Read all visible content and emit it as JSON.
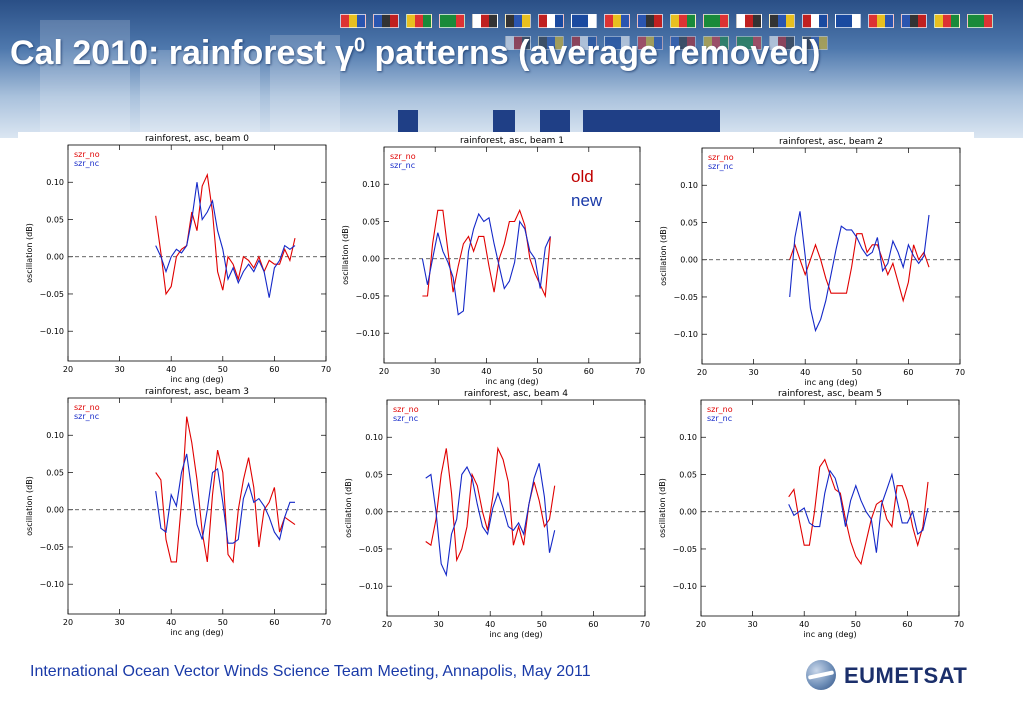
{
  "slide": {
    "title_main": "Cal 2010: rainforest γ",
    "title_sup": "0",
    "title_rest": " patterns (average removed)",
    "footer": "International Ocean Vector Winds Science Team Meeting, Annapolis, May 2011",
    "logo_text": "EUMETSAT",
    "annotation_old": "old",
    "annotation_new": "new",
    "colors": {
      "old": "#e00000",
      "new": "#1428c8",
      "title_bar": "#1f3f86",
      "footer_text": "#1a3aa8"
    }
  },
  "chart_data": [
    {
      "type": "line",
      "title": "rainforest, asc, beam 0",
      "xlabel": "inc ang (deg)",
      "ylabel": "oscillation (dB)",
      "xlim": [
        20,
        70
      ],
      "ylim": [
        -0.14,
        0.15
      ],
      "xticks": [
        20,
        30,
        40,
        50,
        60,
        70
      ],
      "yticks": [
        -0.1,
        -0.05,
        0.0,
        0.05,
        0.1
      ],
      "ytick_labels": [
        "−0.10",
        "−0.05",
        "0.00",
        "0.05",
        "0.10"
      ],
      "legend": [
        "szr_no",
        "szr_nc"
      ],
      "zero_line": true,
      "series": [
        {
          "name": "szr_no",
          "color": "#e00000",
          "x": [
            37,
            38,
            39,
            40,
            41,
            42,
            43,
            44,
            45,
            46,
            47,
            48,
            49,
            50,
            51,
            52,
            53,
            54,
            55,
            56,
            57,
            58,
            59,
            60,
            61,
            62,
            63,
            64
          ],
          "y": [
            0.055,
            0.005,
            -0.05,
            -0.04,
            0.0,
            0.01,
            0.015,
            0.06,
            0.035,
            0.095,
            0.11,
            0.06,
            -0.02,
            -0.045,
            0.0,
            -0.01,
            -0.03,
            0.0,
            -0.005,
            -0.015,
            0.0,
            -0.02,
            -0.005,
            -0.01,
            -0.01,
            0.01,
            -0.005,
            0.025
          ]
        },
        {
          "name": "szr_nc",
          "color": "#1428c8",
          "x": [
            37,
            38,
            39,
            40,
            41,
            42,
            43,
            44,
            45,
            46,
            47,
            48,
            49,
            50,
            51,
            52,
            53,
            54,
            55,
            56,
            57,
            58,
            59,
            60,
            61,
            62,
            63,
            64
          ],
          "y": [
            0.015,
            0.0,
            -0.02,
            0.0,
            0.01,
            0.005,
            0.015,
            0.05,
            0.1,
            0.05,
            0.06,
            0.075,
            0.035,
            0.01,
            -0.03,
            -0.015,
            -0.035,
            -0.02,
            -0.01,
            -0.02,
            -0.005,
            -0.02,
            -0.055,
            -0.015,
            -0.005,
            0.015,
            0.01,
            0.015
          ]
        }
      ]
    },
    {
      "type": "line",
      "title": "rainforest, asc, beam 1",
      "xlabel": "inc ang (deg)",
      "ylabel": "oscillation (dB)",
      "xlim": [
        20,
        70
      ],
      "ylim": [
        -0.14,
        0.15
      ],
      "xticks": [
        20,
        30,
        40,
        50,
        60,
        70
      ],
      "yticks": [
        -0.1,
        -0.05,
        0.0,
        0.05,
        0.1
      ],
      "ytick_labels": [
        "−0.10",
        "−0.05",
        "0.00",
        "0.05",
        "0.10"
      ],
      "legend": [
        "szr_no",
        "szr_nc"
      ],
      "zero_line": true,
      "series": [
        {
          "name": "szr_no",
          "color": "#e00000",
          "x": [
            27.5,
            28.5,
            29.5,
            30.5,
            31.5,
            32.5,
            33.5,
            34.5,
            35.5,
            36.5,
            37.5,
            38.5,
            39.5,
            40.5,
            41.5,
            42.5,
            43.5,
            44.5,
            45.5,
            46.5,
            47.5,
            48.5,
            49.5,
            50.5,
            51.5,
            52.5
          ],
          "y": [
            -0.05,
            -0.05,
            0.02,
            0.065,
            0.065,
            0.01,
            -0.045,
            -0.01,
            0.02,
            0.03,
            0.01,
            0.03,
            0.03,
            -0.01,
            -0.045,
            0.0,
            0.02,
            0.05,
            0.05,
            0.065,
            0.045,
            0.0,
            -0.02,
            -0.035,
            -0.05,
            0.03
          ]
        },
        {
          "name": "szr_nc",
          "color": "#1428c8",
          "x": [
            27.5,
            28.5,
            29.5,
            30.5,
            31.5,
            32.5,
            33.5,
            34.5,
            35.5,
            36.5,
            37.5,
            38.5,
            39.5,
            40.5,
            41.5,
            42.5,
            43.5,
            44.5,
            45.5,
            46.5,
            47.5,
            48.5,
            49.5,
            50.5,
            51.5,
            52.5
          ],
          "y": [
            0.0,
            -0.035,
            0.0,
            0.035,
            0.01,
            -0.005,
            -0.025,
            -0.075,
            -0.07,
            0.01,
            0.04,
            0.06,
            0.05,
            0.055,
            0.02,
            -0.01,
            -0.04,
            -0.03,
            -0.005,
            0.05,
            0.04,
            0.01,
            0.0,
            -0.04,
            0.015,
            0.03
          ]
        }
      ]
    },
    {
      "type": "line",
      "title": "rainforest, asc, beam 2",
      "xlabel": "inc ang (deg)",
      "ylabel": "oscillation (dB)",
      "xlim": [
        20,
        70
      ],
      "ylim": [
        -0.14,
        0.15
      ],
      "xticks": [
        20,
        30,
        40,
        50,
        60,
        70
      ],
      "yticks": [
        -0.1,
        -0.05,
        0.0,
        0.05,
        0.1
      ],
      "ytick_labels": [
        "−0.10",
        "−0.05",
        "0.00",
        "0.05",
        "0.10"
      ],
      "legend": [
        "szr_no",
        "szr_nc"
      ],
      "zero_line": true,
      "series": [
        {
          "name": "szr_no",
          "color": "#e00000",
          "x": [
            37,
            38,
            39,
            40,
            41,
            42,
            43,
            44,
            45,
            46,
            47,
            48,
            49,
            50,
            51,
            52,
            53,
            54,
            55,
            56,
            57,
            58,
            59,
            60,
            61,
            62,
            63,
            64
          ],
          "y": [
            0.0,
            0.02,
            0.0,
            -0.02,
            0.0,
            0.02,
            0.0,
            -0.025,
            -0.045,
            -0.045,
            -0.045,
            -0.045,
            -0.01,
            0.035,
            0.035,
            0.01,
            0.02,
            0.02,
            0.0,
            -0.02,
            -0.005,
            -0.03,
            -0.055,
            -0.03,
            0.02,
            0.0,
            0.01,
            -0.01
          ]
        },
        {
          "name": "szr_nc",
          "color": "#1428c8",
          "x": [
            37,
            38,
            39,
            40,
            41,
            42,
            43,
            44,
            45,
            46,
            47,
            48,
            49,
            50,
            51,
            52,
            53,
            54,
            55,
            56,
            57,
            58,
            59,
            60,
            61,
            62,
            63,
            64
          ],
          "y": [
            -0.05,
            0.03,
            0.065,
            0.005,
            -0.065,
            -0.095,
            -0.08,
            -0.055,
            -0.02,
            0.015,
            0.045,
            0.04,
            0.04,
            0.03,
            0.015,
            0.005,
            0.01,
            0.03,
            -0.015,
            -0.005,
            0.025,
            0.01,
            -0.01,
            0.02,
            0.005,
            -0.005,
            0.005,
            0.06
          ]
        }
      ]
    },
    {
      "type": "line",
      "title": "rainforest, asc, beam 3",
      "xlabel": "inc ang (deg)",
      "ylabel": "oscillation (dB)",
      "xlim": [
        20,
        70
      ],
      "ylim": [
        -0.14,
        0.15
      ],
      "xticks": [
        20,
        30,
        40,
        50,
        60,
        70
      ],
      "yticks": [
        -0.1,
        -0.05,
        0.0,
        0.05,
        0.1
      ],
      "ytick_labels": [
        "−0.10",
        "−0.05",
        "0.00",
        "0.05",
        "0.10"
      ],
      "legend": [
        "szr_no",
        "szr_nc"
      ],
      "zero_line": true,
      "series": [
        {
          "name": "szr_no",
          "color": "#e00000",
          "x": [
            37,
            38,
            39,
            40,
            41,
            42,
            43,
            44,
            45,
            46,
            47,
            48,
            49,
            50,
            51,
            52,
            53,
            54,
            55,
            56,
            57,
            58,
            59,
            60,
            61,
            62,
            63,
            64
          ],
          "y": [
            0.05,
            0.04,
            -0.04,
            -0.07,
            -0.07,
            0.01,
            0.125,
            0.09,
            0.04,
            -0.03,
            -0.07,
            0.02,
            0.08,
            0.05,
            -0.06,
            -0.07,
            0.0,
            0.04,
            0.07,
            0.03,
            -0.05,
            0.0,
            0.01,
            0.03,
            -0.03,
            -0.01,
            -0.015,
            -0.02
          ]
        },
        {
          "name": "szr_nc",
          "color": "#1428c8",
          "x": [
            37,
            38,
            39,
            40,
            41,
            42,
            43,
            44,
            45,
            46,
            47,
            48,
            49,
            50,
            51,
            52,
            53,
            54,
            55,
            56,
            57,
            58,
            59,
            60,
            61,
            62,
            63,
            64
          ],
          "y": [
            0.025,
            -0.025,
            -0.03,
            0.02,
            0.005,
            0.05,
            0.075,
            0.025,
            -0.02,
            -0.04,
            0.0,
            0.05,
            0.055,
            0.01,
            -0.045,
            -0.045,
            -0.04,
            0.015,
            0.035,
            0.01,
            0.015,
            0.005,
            -0.01,
            -0.03,
            -0.04,
            -0.01,
            0.01,
            0.01
          ]
        }
      ]
    },
    {
      "type": "line",
      "title": "rainforest, asc, beam 4",
      "xlabel": "inc ang (deg)",
      "ylabel": "oscillation (dB)",
      "xlim": [
        20,
        70
      ],
      "ylim": [
        -0.14,
        0.15
      ],
      "xticks": [
        20,
        30,
        40,
        50,
        60,
        70
      ],
      "yticks": [
        -0.1,
        -0.05,
        0.0,
        0.05,
        0.1
      ],
      "ytick_labels": [
        "−0.10",
        "−0.05",
        "0.00",
        "0.05",
        "0.10"
      ],
      "legend": [
        "szr_no",
        "szr_nc"
      ],
      "zero_line": true,
      "series": [
        {
          "name": "szr_no",
          "color": "#e00000",
          "x": [
            27.5,
            28.5,
            29.5,
            30.5,
            31.5,
            32.5,
            33.5,
            34.5,
            35.5,
            36.5,
            37.5,
            38.5,
            39.5,
            40.5,
            41.5,
            42.5,
            43.5,
            44.5,
            45.5,
            46.5,
            47.5,
            48.5,
            49.5,
            50.5,
            51.5,
            52.5
          ],
          "y": [
            -0.04,
            -0.045,
            -0.01,
            0.05,
            0.085,
            0.025,
            -0.065,
            -0.05,
            -0.02,
            0.05,
            0.035,
            0.0,
            -0.025,
            0.02,
            0.085,
            0.07,
            0.04,
            -0.045,
            -0.02,
            -0.045,
            0.01,
            0.04,
            0.015,
            -0.02,
            -0.01,
            0.035
          ]
        },
        {
          "name": "szr_nc",
          "color": "#1428c8",
          "x": [
            27.5,
            28.5,
            29.5,
            30.5,
            31.5,
            32.5,
            33.5,
            34.5,
            35.5,
            36.5,
            37.5,
            38.5,
            39.5,
            40.5,
            41.5,
            42.5,
            43.5,
            44.5,
            45.5,
            46.5,
            47.5,
            48.5,
            49.5,
            50.5,
            51.5,
            52.5
          ],
          "y": [
            0.045,
            0.05,
            0.0,
            -0.07,
            -0.085,
            -0.03,
            -0.01,
            0.05,
            0.06,
            0.045,
            0.01,
            -0.02,
            -0.03,
            0.005,
            0.025,
            0.005,
            -0.02,
            -0.025,
            -0.015,
            -0.03,
            0.01,
            0.045,
            0.065,
            0.02,
            -0.055,
            -0.025
          ]
        }
      ]
    },
    {
      "type": "line",
      "title": "rainforest, asc, beam 5",
      "xlabel": "inc ang (deg)",
      "ylabel": "oscillation (dB)",
      "xlim": [
        20,
        70
      ],
      "ylim": [
        -0.14,
        0.15
      ],
      "xticks": [
        20,
        30,
        40,
        50,
        60,
        70
      ],
      "yticks": [
        -0.1,
        -0.05,
        0.0,
        0.05,
        0.1
      ],
      "ytick_labels": [
        "−0.10",
        "−0.05",
        "0.00",
        "0.05",
        "0.10"
      ],
      "legend": [
        "szr_no",
        "szr_nc"
      ],
      "zero_line": true,
      "series": [
        {
          "name": "szr_no",
          "color": "#e00000",
          "x": [
            37,
            38,
            39,
            40,
            41,
            42,
            43,
            44,
            45,
            46,
            47,
            48,
            49,
            50,
            51,
            52,
            53,
            54,
            55,
            56,
            57,
            58,
            59,
            60,
            61,
            62,
            63,
            64
          ],
          "y": [
            0.02,
            0.03,
            -0.01,
            -0.045,
            -0.045,
            0.0,
            0.06,
            0.07,
            0.05,
            0.03,
            0.025,
            -0.01,
            -0.04,
            -0.06,
            -0.07,
            -0.04,
            -0.01,
            0.01,
            0.015,
            -0.01,
            -0.02,
            0.035,
            0.035,
            0.015,
            -0.02,
            -0.045,
            -0.02,
            0.04
          ]
        },
        {
          "name": "szr_nc",
          "color": "#1428c8",
          "x": [
            37,
            38,
            39,
            40,
            41,
            42,
            43,
            44,
            45,
            46,
            47,
            48,
            49,
            50,
            51,
            52,
            53,
            54,
            55,
            56,
            57,
            58,
            59,
            60,
            61,
            62,
            63,
            64
          ],
          "y": [
            0.01,
            -0.005,
            0.0,
            0.005,
            -0.015,
            -0.02,
            -0.02,
            0.025,
            0.055,
            0.045,
            0.02,
            -0.02,
            0.015,
            0.035,
            0.015,
            0.0,
            -0.01,
            -0.055,
            0.01,
            0.03,
            0.05,
            0.015,
            -0.015,
            -0.015,
            0.0,
            -0.03,
            -0.025,
            0.005
          ]
        }
      ]
    }
  ]
}
